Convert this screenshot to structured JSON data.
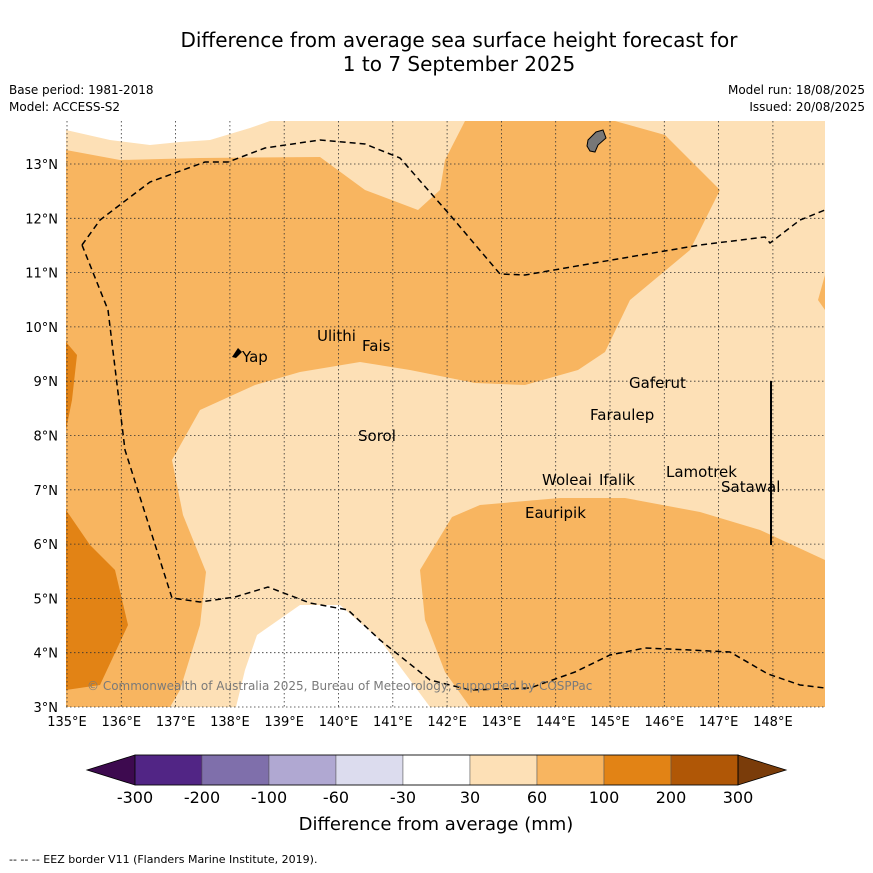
{
  "title": {
    "line1": "Difference from average sea surface height forecast for",
    "line2": "1 to 7 September 2025"
  },
  "meta": {
    "base_period": "Base period: 1981-2018",
    "model": "Model: ACCESS-S2",
    "model_run": "Model run: 18/08/2025",
    "issued": "Issued: 20/08/2025"
  },
  "map": {
    "lon_labels": [
      "135°E",
      "136°E",
      "137°E",
      "138°E",
      "139°E",
      "140°E",
      "141°E",
      "142°E",
      "143°E",
      "144°E",
      "145°E",
      "146°E",
      "147°E",
      "148°E"
    ],
    "lat_labels": [
      "13°N",
      "12°N",
      "11°N",
      "10°N",
      "9°N",
      "8°N",
      "7°N",
      "6°N",
      "5°N",
      "4°N",
      "3°N"
    ],
    "places": [
      {
        "name": "Yap"
      },
      {
        "name": "Ulithi"
      },
      {
        "name": "Fais"
      },
      {
        "name": "Gaferut"
      },
      {
        "name": "Faraulep"
      },
      {
        "name": "Sorol"
      },
      {
        "name": "Lamotrek"
      },
      {
        "name": "Woleai"
      },
      {
        "name": "Ifalik"
      },
      {
        "name": "Satawal"
      },
      {
        "name": "Eauripik"
      }
    ],
    "copyright": "© Commonwealth of Australia 2025, Bureau of Meteorology, supported by COSPPac"
  },
  "colorbar": {
    "ticks": [
      "-300",
      "-200",
      "-100",
      "-60",
      "-30",
      "30",
      "60",
      "100",
      "200",
      "300"
    ],
    "colors": [
      "#3d0a4f",
      "#512585",
      "#7f6fab",
      "#b0a8d2",
      "#dcdcee",
      "#ffffff",
      "#fde0b6",
      "#f8b560",
      "#e28315",
      "#b05706",
      "#7a3c0a"
    ],
    "label": "Difference from average (mm)"
  },
  "footer": "--  --  -- EEZ border V11 (Flanders Marine Institute, 2019)."
}
